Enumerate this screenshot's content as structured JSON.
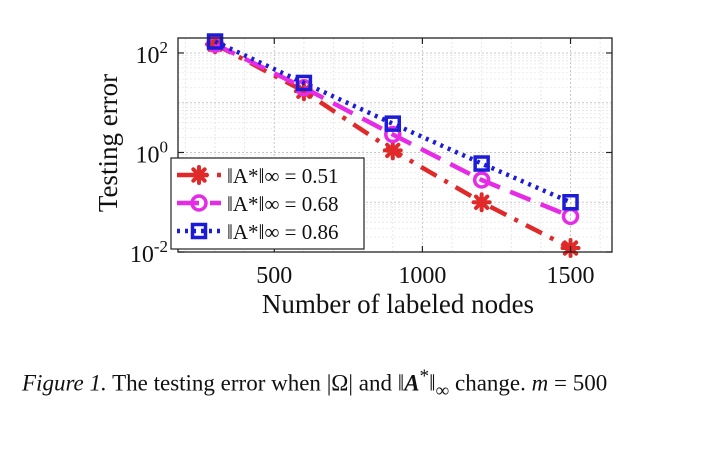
{
  "chart_data": {
    "type": "line",
    "xlabel": "Number of labeled nodes",
    "ylabel": "Testing error",
    "xlim": [
      175,
      1640
    ],
    "ylim": [
      0.01,
      200
    ],
    "yscale": "log",
    "grid": true,
    "legend_position": "bottom-left",
    "x": [
      300,
      600,
      900,
      1200,
      1500
    ],
    "xticks": [
      500,
      1000,
      1500
    ],
    "xtick_labels": [
      "500",
      "1000",
      "1500"
    ],
    "yticks": [
      0.01,
      1,
      100
    ],
    "ytick_labels": [
      {
        "base": "10",
        "exp": "-2"
      },
      {
        "base": "10",
        "exp": "0"
      },
      {
        "base": "10",
        "exp": "2"
      }
    ],
    "series": [
      {
        "name_prefix": "‖A*‖∞ = ",
        "name_value": "0.51",
        "values": [
          150,
          17,
          1.1,
          0.1,
          0.012
        ],
        "color": "#e02a2a",
        "marker": "asterisk",
        "dash": "18,9,4,9"
      },
      {
        "name_prefix": "‖A*‖∞ = ",
        "name_value": "0.68",
        "values": [
          150,
          20,
          2.3,
          0.28,
          0.052
        ],
        "color": "#e62be6",
        "marker": "circle",
        "dash": "22,11"
      },
      {
        "name_prefix": "‖A*‖∞ = ",
        "name_value": "0.86",
        "values": [
          170,
          25,
          3.8,
          0.6,
          0.1
        ],
        "color": "#1c1cd6",
        "marker": "square",
        "dash": "3,5"
      }
    ]
  },
  "caption": {
    "figure_label": "Figure 1.",
    "text_1": " The testing error when ",
    "omega": "|Ω|",
    "text_2": " and ",
    "norm_open": "‖",
    "norm_var": "A",
    "norm_sup": "*",
    "norm_close": "‖",
    "norm_sub": "∞",
    "text_3": " change. ",
    "m_var": "m",
    "text_4": " = 500"
  }
}
